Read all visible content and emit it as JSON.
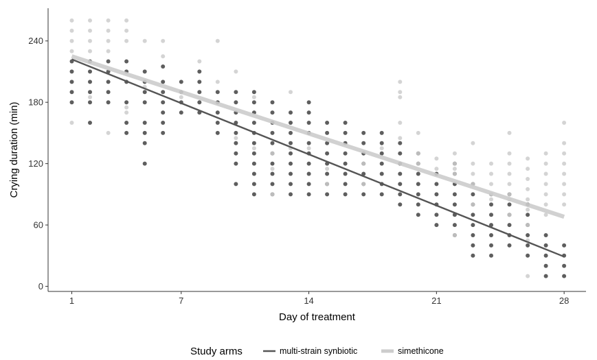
{
  "chart_data": {
    "type": "scatter",
    "title": "",
    "xlabel": "Day of treatment",
    "ylabel": "Crying duration (min)",
    "xlim": [
      -0.3,
      29.2
    ],
    "ylim": [
      -5,
      272
    ],
    "x_ticks": [
      1,
      7,
      14,
      21,
      28
    ],
    "y_ticks": [
      0,
      60,
      120,
      180,
      240
    ],
    "grid": false,
    "legend": {
      "title": "Study arms",
      "position": "bottom"
    },
    "trend_lines": [
      {
        "series": "multi-strain synbiotic",
        "x": [
          1,
          28
        ],
        "y": [
          222,
          29
        ]
      },
      {
        "series": "simethicone",
        "x": [
          1,
          28
        ],
        "y": [
          225,
          68
        ]
      }
    ],
    "series": [
      {
        "name": "multi-strain synbiotic",
        "color": "#555555",
        "points": [
          [
            1,
            220
          ],
          [
            1,
            210
          ],
          [
            1,
            200
          ],
          [
            1,
            190
          ],
          [
            1,
            180
          ],
          [
            2,
            220
          ],
          [
            2,
            210
          ],
          [
            2,
            200
          ],
          [
            2,
            190
          ],
          [
            2,
            180
          ],
          [
            2,
            160
          ],
          [
            3,
            220
          ],
          [
            3,
            210
          ],
          [
            3,
            200
          ],
          [
            3,
            190
          ],
          [
            3,
            180
          ],
          [
            4,
            220
          ],
          [
            4,
            210
          ],
          [
            4,
            200
          ],
          [
            4,
            180
          ],
          [
            4,
            160
          ],
          [
            4,
            150
          ],
          [
            5,
            210
          ],
          [
            5,
            200
          ],
          [
            5,
            190
          ],
          [
            5,
            180
          ],
          [
            5,
            160
          ],
          [
            5,
            150
          ],
          [
            5,
            140
          ],
          [
            5,
            120
          ],
          [
            6,
            215
          ],
          [
            6,
            200
          ],
          [
            6,
            190
          ],
          [
            6,
            180
          ],
          [
            6,
            170
          ],
          [
            6,
            160
          ],
          [
            6,
            150
          ],
          [
            7,
            200
          ],
          [
            7,
            190
          ],
          [
            7,
            180
          ],
          [
            7,
            170
          ],
          [
            8,
            210
          ],
          [
            8,
            200
          ],
          [
            8,
            190
          ],
          [
            8,
            180
          ],
          [
            8,
            170
          ],
          [
            9,
            190
          ],
          [
            9,
            180
          ],
          [
            9,
            170
          ],
          [
            9,
            160
          ],
          [
            9,
            150
          ],
          [
            10,
            190
          ],
          [
            10,
            180
          ],
          [
            10,
            170
          ],
          [
            10,
            160
          ],
          [
            10,
            150
          ],
          [
            10,
            140
          ],
          [
            10,
            130
          ],
          [
            10,
            120
          ],
          [
            10,
            100
          ],
          [
            11,
            190
          ],
          [
            11,
            180
          ],
          [
            11,
            170
          ],
          [
            11,
            160
          ],
          [
            11,
            150
          ],
          [
            11,
            140
          ],
          [
            11,
            130
          ],
          [
            11,
            120
          ],
          [
            11,
            110
          ],
          [
            11,
            100
          ],
          [
            11,
            90
          ],
          [
            12,
            180
          ],
          [
            12,
            170
          ],
          [
            12,
            160
          ],
          [
            12,
            150
          ],
          [
            12,
            140
          ],
          [
            12,
            130
          ],
          [
            12,
            120
          ],
          [
            12,
            110
          ],
          [
            12,
            100
          ],
          [
            12,
            90
          ],
          [
            13,
            170
          ],
          [
            13,
            160
          ],
          [
            13,
            150
          ],
          [
            13,
            140
          ],
          [
            13,
            130
          ],
          [
            13,
            120
          ],
          [
            13,
            110
          ],
          [
            13,
            100
          ],
          [
            13,
            90
          ],
          [
            14,
            180
          ],
          [
            14,
            170
          ],
          [
            14,
            160
          ],
          [
            14,
            150
          ],
          [
            14,
            140
          ],
          [
            14,
            130
          ],
          [
            14,
            120
          ],
          [
            14,
            110
          ],
          [
            14,
            100
          ],
          [
            14,
            90
          ],
          [
            15,
            160
          ],
          [
            15,
            150
          ],
          [
            15,
            140
          ],
          [
            15,
            130
          ],
          [
            15,
            120
          ],
          [
            15,
            110
          ],
          [
            15,
            100
          ],
          [
            15,
            90
          ],
          [
            16,
            160
          ],
          [
            16,
            150
          ],
          [
            16,
            140
          ],
          [
            16,
            130
          ],
          [
            16,
            120
          ],
          [
            16,
            110
          ],
          [
            16,
            100
          ],
          [
            16,
            90
          ],
          [
            17,
            150
          ],
          [
            17,
            140
          ],
          [
            17,
            130
          ],
          [
            17,
            120
          ],
          [
            17,
            110
          ],
          [
            17,
            100
          ],
          [
            17,
            90
          ],
          [
            18,
            150
          ],
          [
            18,
            140
          ],
          [
            18,
            130
          ],
          [
            18,
            120
          ],
          [
            18,
            110
          ],
          [
            18,
            100
          ],
          [
            18,
            90
          ],
          [
            19,
            140
          ],
          [
            19,
            130
          ],
          [
            19,
            120
          ],
          [
            19,
            110
          ],
          [
            19,
            100
          ],
          [
            19,
            90
          ],
          [
            19,
            80
          ],
          [
            20,
            130
          ],
          [
            20,
            120
          ],
          [
            20,
            110
          ],
          [
            20,
            100
          ],
          [
            20,
            90
          ],
          [
            20,
            80
          ],
          [
            20,
            70
          ],
          [
            21,
            110
          ],
          [
            21,
            100
          ],
          [
            21,
            90
          ],
          [
            21,
            80
          ],
          [
            21,
            70
          ],
          [
            21,
            60
          ],
          [
            22,
            120
          ],
          [
            22,
            110
          ],
          [
            22,
            100
          ],
          [
            22,
            90
          ],
          [
            22,
            80
          ],
          [
            22,
            70
          ],
          [
            22,
            60
          ],
          [
            22,
            50
          ],
          [
            23,
            100
          ],
          [
            23,
            90
          ],
          [
            23,
            80
          ],
          [
            23,
            70
          ],
          [
            23,
            60
          ],
          [
            23,
            50
          ],
          [
            23,
            40
          ],
          [
            23,
            30
          ],
          [
            24,
            90
          ],
          [
            24,
            80
          ],
          [
            24,
            70
          ],
          [
            24,
            60
          ],
          [
            24,
            50
          ],
          [
            24,
            40
          ],
          [
            24,
            30
          ],
          [
            25,
            90
          ],
          [
            25,
            80
          ],
          [
            25,
            70
          ],
          [
            25,
            60
          ],
          [
            25,
            50
          ],
          [
            25,
            40
          ],
          [
            26,
            80
          ],
          [
            26,
            70
          ],
          [
            26,
            60
          ],
          [
            26,
            50
          ],
          [
            26,
            40
          ],
          [
            26,
            30
          ],
          [
            27,
            50
          ],
          [
            27,
            40
          ],
          [
            27,
            30
          ],
          [
            27,
            20
          ],
          [
            27,
            10
          ],
          [
            28,
            40
          ],
          [
            28,
            30
          ],
          [
            28,
            20
          ],
          [
            28,
            10
          ]
        ]
      },
      {
        "name": "simethicone",
        "color": "#cccccc",
        "points": [
          [
            1,
            260
          ],
          [
            1,
            250
          ],
          [
            1,
            240
          ],
          [
            1,
            230
          ],
          [
            1,
            160
          ],
          [
            2,
            260
          ],
          [
            2,
            250
          ],
          [
            2,
            240
          ],
          [
            2,
            230
          ],
          [
            2,
            185
          ],
          [
            3,
            260
          ],
          [
            3,
            250
          ],
          [
            3,
            240
          ],
          [
            3,
            230
          ],
          [
            3,
            150
          ],
          [
            4,
            260
          ],
          [
            4,
            250
          ],
          [
            4,
            240
          ],
          [
            4,
            175
          ],
          [
            4,
            170
          ],
          [
            5,
            240
          ],
          [
            5,
            195
          ],
          [
            6,
            240
          ],
          [
            6,
            225
          ],
          [
            7,
            185
          ],
          [
            8,
            220
          ],
          [
            9,
            240
          ],
          [
            9,
            200
          ],
          [
            10,
            210
          ],
          [
            10,
            145
          ],
          [
            11,
            185
          ],
          [
            11,
            135
          ],
          [
            12,
            130
          ],
          [
            12,
            115
          ],
          [
            12,
            90
          ],
          [
            13,
            190
          ],
          [
            13,
            135
          ],
          [
            14,
            135
          ],
          [
            15,
            115
          ],
          [
            15,
            100
          ],
          [
            17,
            120
          ],
          [
            17,
            100
          ],
          [
            18,
            135
          ],
          [
            19,
            200
          ],
          [
            19,
            190
          ],
          [
            19,
            185
          ],
          [
            19,
            160
          ],
          [
            19,
            145
          ],
          [
            20,
            150
          ],
          [
            20,
            130
          ],
          [
            20,
            120
          ],
          [
            21,
            125
          ],
          [
            21,
            115
          ],
          [
            22,
            130
          ],
          [
            22,
            120
          ],
          [
            22,
            115
          ],
          [
            22,
            110
          ],
          [
            22,
            50
          ],
          [
            23,
            140
          ],
          [
            23,
            120
          ],
          [
            23,
            110
          ],
          [
            23,
            100
          ],
          [
            23,
            80
          ],
          [
            24,
            120
          ],
          [
            24,
            110
          ],
          [
            24,
            100
          ],
          [
            24,
            90
          ],
          [
            24,
            85
          ],
          [
            25,
            150
          ],
          [
            25,
            130
          ],
          [
            25,
            120
          ],
          [
            25,
            110
          ],
          [
            25,
            100
          ],
          [
            25,
            90
          ],
          [
            25,
            85
          ],
          [
            25,
            70
          ],
          [
            26,
            125
          ],
          [
            26,
            115
          ],
          [
            26,
            105
          ],
          [
            26,
            95
          ],
          [
            26,
            85
          ],
          [
            26,
            75
          ],
          [
            26,
            60
          ],
          [
            26,
            45
          ],
          [
            26,
            10
          ],
          [
            27,
            130
          ],
          [
            27,
            120
          ],
          [
            27,
            110
          ],
          [
            27,
            100
          ],
          [
            27,
            90
          ],
          [
            27,
            80
          ],
          [
            27,
            70
          ],
          [
            28,
            160
          ],
          [
            28,
            140
          ],
          [
            28,
            130
          ],
          [
            28,
            120
          ],
          [
            28,
            110
          ],
          [
            28,
            100
          ],
          [
            28,
            90
          ],
          [
            28,
            80
          ]
        ]
      }
    ]
  }
}
